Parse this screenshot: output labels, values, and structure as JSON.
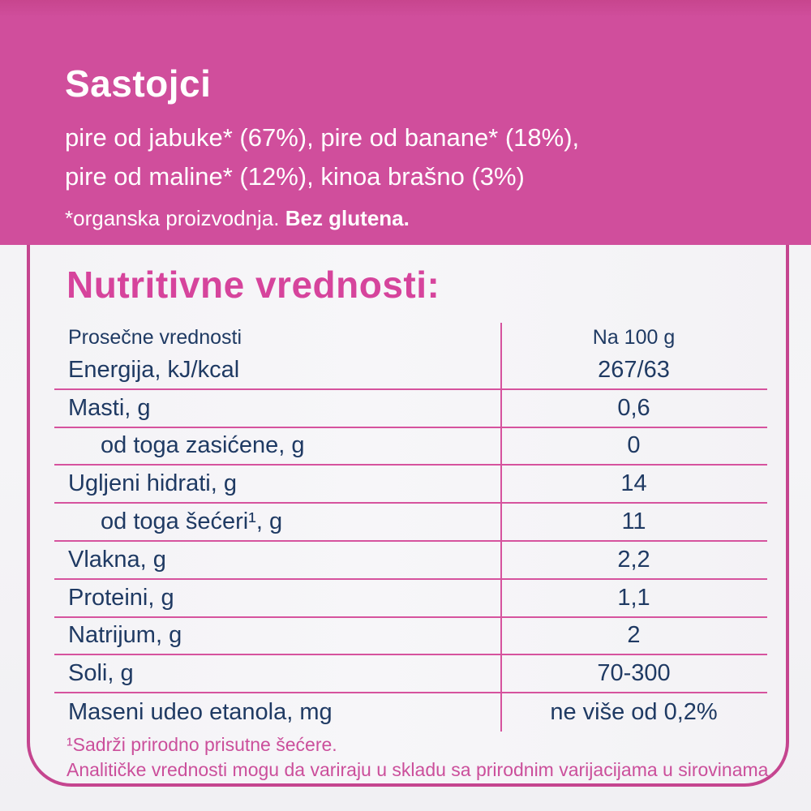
{
  "colors": {
    "header_bg": "#d04e9c",
    "accent_pink": "#d6449c",
    "line_pink": "#d6539e",
    "text_navy": "#1f3a63",
    "text_white": "#ffffff",
    "page_bg": "#f4f3f6"
  },
  "header": {
    "title": "Sastojci",
    "ingredients_line1": "pire od jabuke* (67%), pire od banane* (18%),",
    "ingredients_line2": "pire od maline* (12%), kinoa brašno (3%)",
    "note_regular": "*organska proizvodnja. ",
    "note_bold": "Bez glutena."
  },
  "nutrition": {
    "title": "Nutritivne vrednosti:",
    "columns": {
      "label": "Prosečne vrednosti",
      "value": "Na 100 g"
    },
    "rows": [
      {
        "label": "Energija, kJ/kcal",
        "value": "267/63",
        "indent": false
      },
      {
        "label": "Masti, g",
        "value": "0,6",
        "indent": false
      },
      {
        "label": "od toga zasićene, g",
        "value": "0",
        "indent": true
      },
      {
        "label": "Ugljeni hidrati, g",
        "value": "14",
        "indent": false
      },
      {
        "label": "od toga šećeri¹, g",
        "value": "11",
        "indent": true
      },
      {
        "label": "Vlakna, g",
        "value": "2,2",
        "indent": false
      },
      {
        "label": "Proteini, g",
        "value": "1,1",
        "indent": false
      },
      {
        "label": "Natrijum, g",
        "value": "2",
        "indent": false
      },
      {
        "label": "Soli, g",
        "value": "70-300",
        "indent": false
      },
      {
        "label": "Maseni udeo etanola, mg",
        "value": "ne više od 0,2%",
        "indent": false
      }
    ],
    "footnote_line1": "¹Sadrži prirodno prisutne šećere.",
    "footnote_line2": "Analitičke vrednosti mogu da variraju u skladu sa prirodnim varijacijama u sirovinama."
  }
}
